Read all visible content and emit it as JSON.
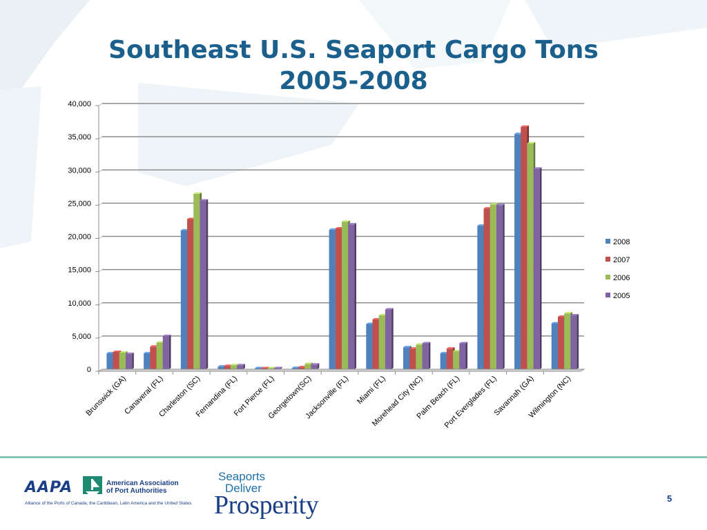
{
  "slide": {
    "title_line1": "Southeast U.S. Seaport Cargo Tons",
    "title_line2": "2005-2008",
    "page_number": "5"
  },
  "footer": {
    "aapa_letters": "AAPA",
    "aapa_name_line1": "American Association",
    "aapa_name_line2": "of Port Authorities",
    "aapa_tagline": "Alliance of the Ports of Canada, the Caribbean, Latin America and the United States",
    "sdp_line1": "Seaports",
    "sdp_line2": "Deliver",
    "sdp_line3": "Prosperity"
  },
  "colors": {
    "title": "#1b5f8c",
    "divider": "#7fc6b4",
    "background_shape": "#e9f1f5"
  },
  "chart_data": {
    "type": "bar",
    "title": "",
    "xlabel": "",
    "ylabel": "",
    "ylim": [
      0,
      40000
    ],
    "yticks": [
      0,
      5000,
      10000,
      15000,
      20000,
      25000,
      30000,
      35000,
      40000
    ],
    "ytick_labels": [
      "0",
      "5,000",
      "10,000",
      "15,000",
      "20,000",
      "25,000",
      "30,000",
      "35,000",
      "40,000"
    ],
    "grid": true,
    "legend_position": "right",
    "categories": [
      "Brunswick (GA)",
      "Canaveral (FL)",
      "Charleston (SC)",
      "Fernandina (FL)",
      "Fort Pierce (FL)",
      "Georgetown(SC)",
      "Jacksonville (FL)",
      "Miami (FL)",
      "Morehead City (NC)",
      "Palm Beach (FL)",
      "Port Everglades (FL)",
      "Savannah (GA)",
      "Wilmington (NC)"
    ],
    "series": [
      {
        "name": "2008",
        "color": "#4f81bd",
        "values": [
          2400,
          2400,
          20900,
          400,
          150,
          200,
          21000,
          6800,
          3300,
          2400,
          21600,
          35400,
          6900
        ]
      },
      {
        "name": "2007",
        "color": "#c0504d",
        "values": [
          2600,
          3400,
          22600,
          500,
          150,
          300,
          21200,
          7500,
          3100,
          3100,
          24200,
          36500,
          7900
        ]
      },
      {
        "name": "2006",
        "color": "#9bbb59",
        "values": [
          2500,
          4000,
          26400,
          600,
          150,
          800,
          22200,
          8100,
          3700,
          2700,
          24800,
          34000,
          8400
        ]
      },
      {
        "name": "2005",
        "color": "#8064a2",
        "values": [
          2300,
          5000,
          25400,
          600,
          150,
          700,
          21800,
          9000,
          3900,
          3900,
          24700,
          30200,
          8100
        ]
      }
    ]
  }
}
